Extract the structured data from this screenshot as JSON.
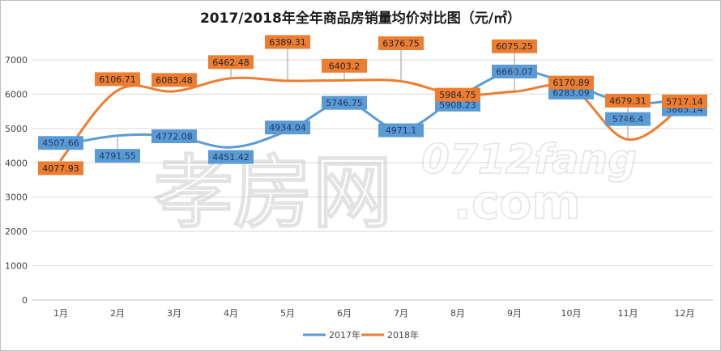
{
  "chart_data": {
    "type": "line",
    "title": "2017/2018年全年商品房销量均价对比图（元/㎡）",
    "categories": [
      "1月",
      "2月",
      "3月",
      "4月",
      "5月",
      "6月",
      "7月",
      "8月",
      "9月",
      "10月",
      "11月",
      "12月"
    ],
    "series": [
      {
        "name": "2017年",
        "color": "#5b9bd5",
        "values": [
          4507.66,
          4791.55,
          4772.08,
          4451.42,
          4934.04,
          5746.75,
          4971.1,
          5908.23,
          6660.07,
          6283.09,
          5746.4,
          5865.14
        ],
        "labels": [
          "4507.66",
          "4791.55",
          "4772.08",
          "4451.42",
          "4934.04",
          "5746.75",
          "4971.1",
          "5908.23",
          "6660.07",
          "6283.09",
          "5746.4",
          "5865.14"
        ]
      },
      {
        "name": "2018年",
        "color": "#ed7d31",
        "values": [
          4077.93,
          6106.71,
          6083.48,
          6462.48,
          6389.31,
          6403.2,
          6376.75,
          5984.75,
          6075.25,
          6170.89,
          4679.31,
          5717.14
        ],
        "labels": [
          "4077.93",
          "6106.71",
          "6083.48",
          "6462.48",
          "6389.31",
          "6403.2",
          "6376.75",
          "5984.75",
          "6075.25",
          "6170.89",
          "4679.31",
          "5717.14"
        ]
      }
    ],
    "ylim": [
      0,
      7000
    ],
    "yticks": [
      0,
      1000,
      2000,
      3000,
      4000,
      5000,
      6000,
      7000
    ],
    "grid": true,
    "legend_position": "bottom"
  },
  "watermark": {
    "brand": "孝房网",
    "url": "0712fang",
    "domain": ".com"
  }
}
